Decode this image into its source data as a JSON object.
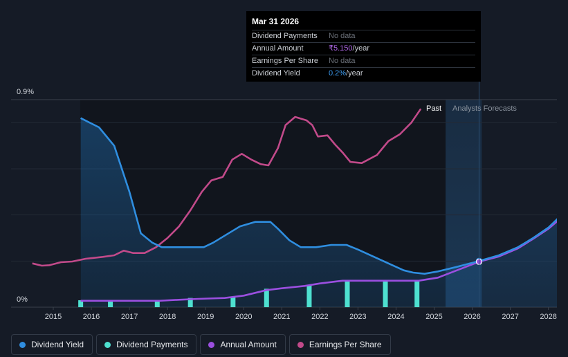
{
  "chart_data": {
    "type": "line",
    "y_axis": {
      "max_label": "0.9%",
      "min_label": "0%",
      "range": [
        0,
        0.9
      ]
    },
    "x_axis": {
      "ticks": [
        "2015",
        "2016",
        "2017",
        "2018",
        "2019",
        "2020",
        "2021",
        "2022",
        "2023",
        "2024",
        "2025",
        "2026",
        "2027",
        "2028"
      ],
      "range": [
        2014.45,
        2028.25
      ]
    },
    "regions": {
      "past_label": "Past",
      "forecast_label": "Analysts Forecasts",
      "forecast_start": 2025.3,
      "forecast_end": 2026.25
    },
    "series": [
      {
        "name": "Dividend Yield",
        "color": "#2f8ee0",
        "unit": "%",
        "points": [
          [
            2015.72,
            0.82
          ],
          [
            2016.2,
            0.78
          ],
          [
            2016.6,
            0.7
          ],
          [
            2017.0,
            0.5
          ],
          [
            2017.3,
            0.32
          ],
          [
            2017.6,
            0.28
          ],
          [
            2017.85,
            0.26
          ],
          [
            2018.3,
            0.26
          ],
          [
            2018.7,
            0.26
          ],
          [
            2018.95,
            0.26
          ],
          [
            2019.2,
            0.28
          ],
          [
            2019.6,
            0.32
          ],
          [
            2019.9,
            0.35
          ],
          [
            2020.3,
            0.37
          ],
          [
            2020.7,
            0.37
          ],
          [
            2020.9,
            0.34
          ],
          [
            2021.2,
            0.29
          ],
          [
            2021.5,
            0.26
          ],
          [
            2021.9,
            0.26
          ],
          [
            2022.3,
            0.27
          ],
          [
            2022.7,
            0.27
          ],
          [
            2023.0,
            0.25
          ],
          [
            2023.4,
            0.22
          ],
          [
            2023.8,
            0.19
          ],
          [
            2024.2,
            0.16
          ],
          [
            2024.45,
            0.15
          ],
          [
            2024.75,
            0.145
          ],
          [
            2025.1,
            0.155
          ],
          [
            2025.6,
            0.175
          ],
          [
            2026.18,
            0.2
          ],
          [
            2026.7,
            0.225
          ],
          [
            2027.2,
            0.26
          ],
          [
            2027.6,
            0.3
          ],
          [
            2028.0,
            0.345
          ],
          [
            2028.25,
            0.385
          ]
        ]
      },
      {
        "name": "Dividend Payments",
        "color": "#4ee0d0",
        "unit": "₹",
        "bars": [
          [
            2015.72,
            0.03
          ],
          [
            2016.5,
            0.03
          ],
          [
            2017.73,
            0.03
          ],
          [
            2018.6,
            0.04
          ],
          [
            2019.72,
            0.045
          ],
          [
            2020.6,
            0.08
          ],
          [
            2021.72,
            0.095
          ],
          [
            2022.72,
            0.115
          ],
          [
            2023.72,
            0.115
          ],
          [
            2024.55,
            0.115
          ]
        ]
      },
      {
        "name": "Annual Amount",
        "color": "#9b4fe0",
        "unit": "₹",
        "points": [
          [
            2015.72,
            0.028
          ],
          [
            2016.5,
            0.028
          ],
          [
            2017.0,
            0.028
          ],
          [
            2017.8,
            0.028
          ],
          [
            2018.3,
            0.032
          ],
          [
            2018.8,
            0.036
          ],
          [
            2019.5,
            0.04
          ],
          [
            2020.0,
            0.05
          ],
          [
            2020.6,
            0.074
          ],
          [
            2021.0,
            0.082
          ],
          [
            2021.6,
            0.092
          ],
          [
            2022.0,
            0.103
          ],
          [
            2022.6,
            0.115
          ],
          [
            2023.0,
            0.115
          ],
          [
            2024.0,
            0.115
          ],
          [
            2024.6,
            0.115
          ],
          [
            2025.1,
            0.128
          ],
          [
            2025.6,
            0.16
          ],
          [
            2026.18,
            0.197
          ],
          [
            2026.7,
            0.22
          ],
          [
            2027.2,
            0.255
          ],
          [
            2027.6,
            0.296
          ],
          [
            2028.0,
            0.34
          ],
          [
            2028.25,
            0.375
          ]
        ]
      },
      {
        "name": "Earnings Per Share",
        "color": "#c24a8a",
        "unit": "₹",
        "points": [
          [
            2014.45,
            0.19
          ],
          [
            2014.7,
            0.18
          ],
          [
            2014.9,
            0.182
          ],
          [
            2015.2,
            0.195
          ],
          [
            2015.5,
            0.198
          ],
          [
            2015.85,
            0.21
          ],
          [
            2016.3,
            0.218
          ],
          [
            2016.6,
            0.225
          ],
          [
            2016.85,
            0.245
          ],
          [
            2017.1,
            0.235
          ],
          [
            2017.4,
            0.235
          ],
          [
            2017.7,
            0.26
          ],
          [
            2018.0,
            0.3
          ],
          [
            2018.3,
            0.35
          ],
          [
            2018.6,
            0.42
          ],
          [
            2018.9,
            0.5
          ],
          [
            2019.15,
            0.55
          ],
          [
            2019.45,
            0.565
          ],
          [
            2019.7,
            0.64
          ],
          [
            2019.95,
            0.665
          ],
          [
            2020.2,
            0.64
          ],
          [
            2020.45,
            0.62
          ],
          [
            2020.65,
            0.615
          ],
          [
            2020.9,
            0.69
          ],
          [
            2021.1,
            0.79
          ],
          [
            2021.35,
            0.825
          ],
          [
            2021.65,
            0.81
          ],
          [
            2021.8,
            0.79
          ],
          [
            2021.95,
            0.74
          ],
          [
            2022.2,
            0.745
          ],
          [
            2022.4,
            0.705
          ],
          [
            2022.6,
            0.67
          ],
          [
            2022.8,
            0.63
          ],
          [
            2023.1,
            0.625
          ],
          [
            2023.5,
            0.66
          ],
          [
            2023.8,
            0.72
          ],
          [
            2024.1,
            0.75
          ],
          [
            2024.4,
            0.8
          ],
          [
            2024.65,
            0.86
          ]
        ]
      }
    ],
    "highlight": {
      "x": 2026.18
    }
  },
  "tooltip": {
    "title": "Mar 31 2026",
    "rows": [
      {
        "label": "Dividend Payments",
        "value": "No data",
        "unit": ""
      },
      {
        "label": "Annual Amount",
        "value": "₹5.150",
        "unit": "/year"
      },
      {
        "label": "Earnings Per Share",
        "value": "No data",
        "unit": ""
      },
      {
        "label": "Dividend Yield",
        "value": "0.2%",
        "unit": "/year"
      }
    ]
  },
  "legend": [
    {
      "label": "Dividend Yield",
      "color": "#2f8ee0"
    },
    {
      "label": "Dividend Payments",
      "color": "#4ee0d0"
    },
    {
      "label": "Annual Amount",
      "color": "#9b4fe0"
    },
    {
      "label": "Earnings Per Share",
      "color": "#c24a8a"
    }
  ]
}
